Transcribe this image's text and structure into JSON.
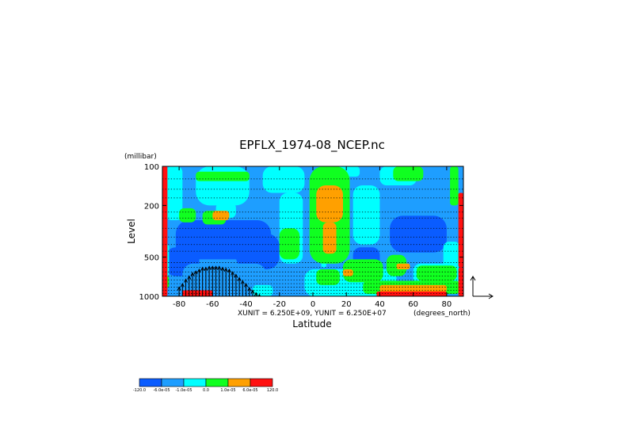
{
  "chart_data": {
    "type": "heatmap",
    "title": "EPFLX_1974-08_NCEP.nc",
    "xlabel": "Latitude",
    "ylabel": "Level",
    "y_units": "(millibar)",
    "x_units": "(degrees_north)",
    "unit_note": "XUNIT = 6.250E+09, YUNIT = 6.250E+07",
    "xlim": [
      -90,
      90
    ],
    "ylim": [
      1000,
      100
    ],
    "y_scale": "log",
    "x_ticks": [
      -80,
      -60,
      -40,
      -20,
      0,
      20,
      40,
      60,
      80
    ],
    "x_tick_labels": [
      "-80",
      "-60",
      "-40",
      "-20",
      "0",
      "20",
      "40",
      "60",
      "80"
    ],
    "y_ticks": [
      100,
      200,
      500,
      1000
    ],
    "y_tick_labels": [
      "100",
      "200",
      "500",
      "1000"
    ],
    "grid_levels": [
      125,
      150,
      175,
      225,
      250,
      300,
      350,
      400,
      450,
      550,
      600,
      650,
      700,
      750,
      800,
      850,
      900,
      950
    ],
    "colorbar": {
      "bounds": [
        "-120.0",
        "-6.0e-05",
        "-1.0e-05",
        "0.0",
        "1.0e-05",
        "6.0e-05",
        "120.0"
      ],
      "colors": [
        "#0a5cff",
        "#1e9eff",
        "#00ffff",
        "#10ff20",
        "#ffa000",
        "#ff1010"
      ]
    },
    "background_color": "#1e9eff",
    "regions": [
      {
        "class": 0,
        "lat": [
          -82,
          -25
        ],
        "lev": [
          260,
          520
        ]
      },
      {
        "class": 0,
        "lat": [
          -88,
          -68
        ],
        "lev": [
          420,
          700
        ]
      },
      {
        "class": 0,
        "lat": [
          -46,
          -20
        ],
        "lev": [
          330,
          620
        ]
      },
      {
        "class": 0,
        "lat": [
          -12,
          -6
        ],
        "lev": [
          380,
          520
        ]
      },
      {
        "class": 0,
        "lat": [
          46,
          80
        ],
        "lev": [
          240,
          460
        ]
      },
      {
        "class": 0,
        "lat": [
          24,
          40
        ],
        "lev": [
          420,
          620
        ]
      },
      {
        "class": 1,
        "lat": [
          -78,
          -28
        ],
        "lev": [
          560,
          960
        ]
      },
      {
        "class": 2,
        "lat": [
          -88,
          -78
        ],
        "lev": [
          100,
          260
        ]
      },
      {
        "class": 2,
        "lat": [
          -70,
          -38
        ],
        "lev": [
          100,
          200
        ]
      },
      {
        "class": 2,
        "lat": [
          -30,
          -5
        ],
        "lev": [
          100,
          160
        ]
      },
      {
        "class": 2,
        "lat": [
          5,
          8
        ],
        "lev": [
          100,
          600
        ]
      },
      {
        "class": 2,
        "lat": [
          8,
          28
        ],
        "lev": [
          100,
          120
        ]
      },
      {
        "class": 2,
        "lat": [
          40,
          62
        ],
        "lev": [
          100,
          140
        ]
      },
      {
        "class": 2,
        "lat": [
          24,
          40
        ],
        "lev": [
          140,
          400
        ]
      },
      {
        "class": 2,
        "lat": [
          -20,
          -6
        ],
        "lev": [
          160,
          560
        ]
      },
      {
        "class": 2,
        "lat": [
          -90,
          -86
        ],
        "lev": [
          400,
          700
        ]
      },
      {
        "class": 2,
        "lat": [
          -5,
          50
        ],
        "lev": [
          620,
          1000
        ]
      },
      {
        "class": 2,
        "lat": [
          78,
          88
        ],
        "lev": [
          380,
          700
        ]
      },
      {
        "class": 2,
        "lat": [
          60,
          88
        ],
        "lev": [
          560,
          820
        ]
      },
      {
        "class": 2,
        "lat": [
          -36,
          -24
        ],
        "lev": [
          820,
          1000
        ]
      },
      {
        "class": 2,
        "lat": [
          -58,
          -46
        ],
        "lev": [
          190,
          250
        ]
      },
      {
        "class": 3,
        "lat": [
          -70,
          -38
        ],
        "lev": [
          110,
          130
        ]
      },
      {
        "class": 3,
        "lat": [
          -80,
          -70
        ],
        "lev": [
          210,
          270
        ]
      },
      {
        "class": 3,
        "lat": [
          -66,
          -52
        ],
        "lev": [
          220,
          280
        ]
      },
      {
        "class": 3,
        "lat": [
          -2,
          22
        ],
        "lev": [
          100,
          560
        ]
      },
      {
        "class": 3,
        "lat": [
          48,
          66
        ],
        "lev": [
          100,
          130
        ]
      },
      {
        "class": 3,
        "lat": [
          82,
          87
        ],
        "lev": [
          100,
          200
        ]
      },
      {
        "class": 3,
        "lat": [
          -20,
          -8
        ],
        "lev": [
          300,
          520
        ]
      },
      {
        "class": 3,
        "lat": [
          2,
          16
        ],
        "lev": [
          620,
          820
        ]
      },
      {
        "class": 3,
        "lat": [
          18,
          42
        ],
        "lev": [
          520,
          780
        ]
      },
      {
        "class": 3,
        "lat": [
          44,
          56
        ],
        "lev": [
          480,
          700
        ]
      },
      {
        "class": 3,
        "lat": [
          62,
          86
        ],
        "lev": [
          580,
          760
        ]
      },
      {
        "class": 3,
        "lat": [
          30,
          88
        ],
        "lev": [
          760,
          960
        ]
      },
      {
        "class": 3,
        "lat": [
          -90,
          -86
        ],
        "lev": [
          700,
          860
        ]
      },
      {
        "class": 4,
        "lat": [
          -60,
          -50
        ],
        "lev": [
          220,
          260
        ]
      },
      {
        "class": 4,
        "lat": [
          2,
          18
        ],
        "lev": [
          140,
          270
        ]
      },
      {
        "class": 4,
        "lat": [
          6,
          14
        ],
        "lev": [
          270,
          470
        ]
      },
      {
        "class": 4,
        "lat": [
          18,
          24
        ],
        "lev": [
          620,
          700
        ]
      },
      {
        "class": 4,
        "lat": [
          50,
          58
        ],
        "lev": [
          560,
          620
        ]
      },
      {
        "class": 4,
        "lat": [
          40,
          80
        ],
        "lev": [
          820,
          930
        ]
      },
      {
        "class": 5,
        "lat": [
          -78,
          -60
        ],
        "lev": [
          900,
          1000
        ]
      },
      {
        "class": 5,
        "lat": [
          38,
          80
        ],
        "lev": [
          920,
          1000
        ]
      },
      {
        "class": 5,
        "lat": [
          -90,
          -87
        ],
        "lev": [
          100,
          1000
        ]
      },
      {
        "class": 5,
        "lat": [
          87,
          90
        ],
        "lev": [
          160,
          600
        ]
      },
      {
        "class": 5,
        "lat": [
          87,
          90
        ],
        "lev": [
          600,
          1000
        ]
      }
    ],
    "vectors": {
      "lat": [
        -80,
        -78,
        -76,
        -74,
        -72,
        -70,
        -68,
        -66,
        -64,
        -62,
        -60,
        -58,
        -56,
        -54,
        -52,
        -50,
        -48,
        -46,
        -44,
        -42,
        -40,
        -38,
        -36,
        -34,
        -32
      ],
      "lev_top": [
        850,
        800,
        740,
        700,
        660,
        640,
        620,
        600,
        600,
        590,
        590,
        590,
        590,
        600,
        610,
        620,
        650,
        680,
        720,
        760,
        800,
        860,
        900,
        940,
        970
      ],
      "lev_bottom": 1000
    },
    "reference_arrow": {
      "dx": 1,
      "dy": 1
    }
  }
}
